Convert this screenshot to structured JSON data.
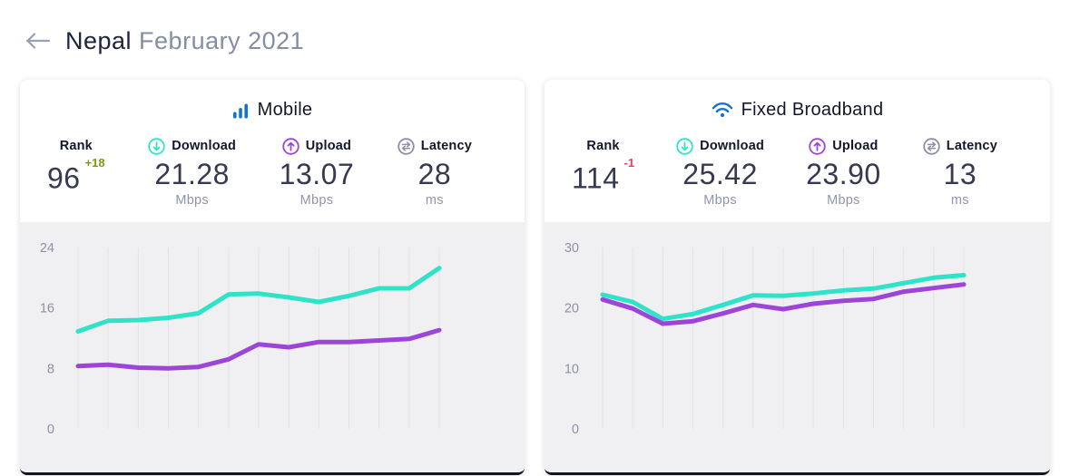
{
  "header": {
    "back_icon": "left-arrow",
    "country": "Nepal",
    "period": "February 2021"
  },
  "colors": {
    "brand_blue": "#1173d4",
    "download_teal": "#2fe3c8",
    "upload_purple": "#9c45d8",
    "latency_gray": "#8b8fa3",
    "rank_up_green": "#7d9b12",
    "rank_down_red": "#ef3a5d",
    "dark_navy": "#14162b",
    "chart_bg": "#f0f0f2",
    "gridline": "#e3e3e7"
  },
  "cards": [
    {
      "title": "Mobile",
      "icon": "mobile-bars-icon",
      "stats": {
        "rank": {
          "label": "Rank",
          "value": "96",
          "change": "+18",
          "change_color": "#7d9b12"
        },
        "download": {
          "label": "Download",
          "value": "21.28",
          "unit": "Mbps"
        },
        "upload": {
          "label": "Upload",
          "value": "13.07",
          "unit": "Mbps"
        },
        "latency": {
          "label": "Latency",
          "value": "28",
          "unit": "ms"
        }
      }
    },
    {
      "title": "Fixed Broadband",
      "icon": "wifi-icon",
      "stats": {
        "rank": {
          "label": "Rank",
          "value": "114",
          "change": "-1",
          "change_color": "#ef3a5d"
        },
        "download": {
          "label": "Download",
          "value": "25.42",
          "unit": "Mbps"
        },
        "upload": {
          "label": "Upload",
          "value": "23.90",
          "unit": "Mbps"
        },
        "latency": {
          "label": "Latency",
          "value": "13",
          "unit": "ms"
        }
      }
    }
  ],
  "chart_data": [
    {
      "type": "line",
      "title": "Mobile monthly speed trend (Mbps)",
      "x_points": 13,
      "x_tick_labels": [],
      "ylim": [
        0,
        24
      ],
      "yticks": [
        24,
        16,
        8,
        0
      ],
      "grid": "vertical",
      "legend": "none",
      "series": [
        {
          "name": "Download",
          "color": "#2fe3c8",
          "values": [
            12.9,
            14.3,
            14.4,
            14.7,
            15.3,
            17.8,
            17.9,
            17.4,
            16.8,
            17.6,
            18.6,
            18.6,
            21.28
          ]
        },
        {
          "name": "Upload",
          "color": "#9c45d8",
          "values": [
            8.3,
            8.5,
            8.1,
            8.0,
            8.2,
            9.2,
            11.2,
            10.8,
            11.5,
            11.5,
            11.7,
            11.9,
            13.07
          ]
        }
      ]
    },
    {
      "type": "line",
      "title": "Fixed Broadband monthly speed trend (Mbps)",
      "x_points": 13,
      "x_tick_labels": [],
      "ylim": [
        0,
        30
      ],
      "yticks": [
        30,
        20,
        10,
        0
      ],
      "grid": "vertical",
      "legend": "none",
      "series": [
        {
          "name": "Download",
          "color": "#2fe3c8",
          "values": [
            22.2,
            21.0,
            18.2,
            19.0,
            20.5,
            22.1,
            22.0,
            22.4,
            22.9,
            23.2,
            24.1,
            25.0,
            25.42
          ]
        },
        {
          "name": "Upload",
          "color": "#9c45d8",
          "values": [
            21.4,
            19.9,
            17.4,
            17.8,
            19.1,
            20.5,
            19.8,
            20.7,
            21.2,
            21.5,
            22.7,
            23.3,
            23.9
          ]
        }
      ]
    }
  ]
}
